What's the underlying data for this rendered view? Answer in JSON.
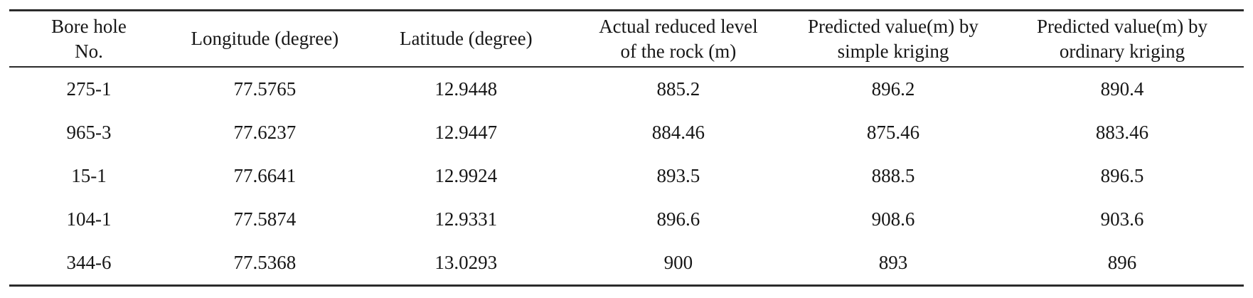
{
  "table": {
    "columns": [
      {
        "id": "bore_hole_no",
        "label": "Bore hole\nNo."
      },
      {
        "id": "longitude_degree",
        "label": "Longitude (degree)"
      },
      {
        "id": "latitude_degree",
        "label": "Latitude (degree)"
      },
      {
        "id": "actual_reduced_level",
        "label": "Actual reduced level\nof the rock (m)"
      },
      {
        "id": "predicted_simple_kriging",
        "label": "Predicted value(m) by\nsimple kriging"
      },
      {
        "id": "predicted_ordinary_kriging",
        "label": "Predicted value(m) by\nordinary kriging"
      }
    ],
    "rows": [
      [
        "275-1",
        "77.5765",
        "12.9448",
        "885.2",
        "896.2",
        "890.4"
      ],
      [
        "965-3",
        "77.6237",
        "12.9447",
        "884.46",
        "875.46",
        "883.46"
      ],
      [
        "15-1",
        "77.6641",
        "12.9924",
        "893.5",
        "888.5",
        "896.5"
      ],
      [
        "104-1",
        "77.5874",
        "12.9331",
        "896.6",
        "908.6",
        "903.6"
      ],
      [
        "344-6",
        "77.5368",
        "13.0293",
        "900",
        "893",
        "896"
      ]
    ]
  },
  "chart_data": {
    "type": "table",
    "columns": [
      "Bore hole No.",
      "Longitude (degree)",
      "Latitude (degree)",
      "Actual reduced level of the rock (m)",
      "Predicted value(m) by simple kriging",
      "Predicted value(m) by ordinary kriging"
    ],
    "rows": [
      [
        "275-1",
        77.5765,
        12.9448,
        885.2,
        896.2,
        890.4
      ],
      [
        "965-3",
        77.6237,
        12.9447,
        884.46,
        875.46,
        883.46
      ],
      [
        "15-1",
        77.6641,
        12.9924,
        893.5,
        888.5,
        896.5
      ],
      [
        "104-1",
        77.5874,
        12.9331,
        896.6,
        908.6,
        903.6
      ],
      [
        "344-6",
        77.5368,
        13.0293,
        900,
        893,
        896
      ]
    ]
  },
  "colors": {
    "rule": "#2b2b2b",
    "text": "#161616",
    "background": "#ffffff"
  }
}
